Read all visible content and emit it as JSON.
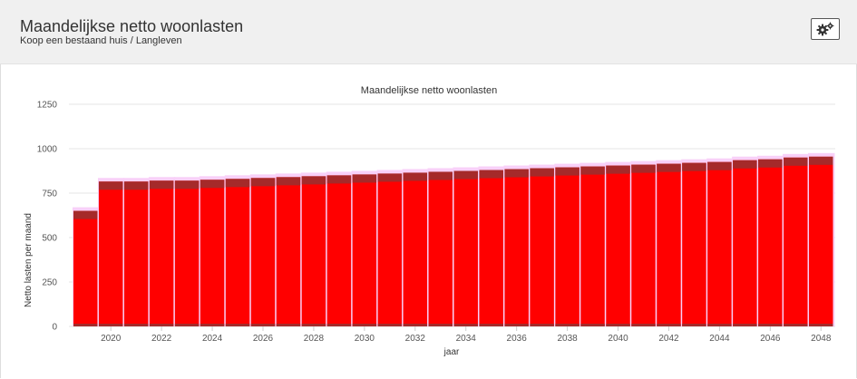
{
  "header": {
    "title": "Maandelijkse netto woonlasten",
    "subtitle": "Koop een bestaand huis / Langleven",
    "settings_icon": "gears-icon"
  },
  "colors": {
    "bar_main": "#ff0000",
    "bar_top": "#a52a2a",
    "bar_shadow": "#f8d0f8",
    "grid": "#e6e6e6",
    "header_bg": "#f0f0f0"
  },
  "chart_data": {
    "type": "bar",
    "title": "Maandelijkse netto woonlasten",
    "xlabel": "jaar",
    "ylabel": "Netto lasten per maand",
    "ylim": [
      0,
      1250
    ],
    "yticks": [
      "0",
      "250",
      "500",
      "750",
      "1000",
      "1250"
    ],
    "grid": true,
    "categories": [
      "2019",
      "2020",
      "2021",
      "2022",
      "2023",
      "2024",
      "2025",
      "2026",
      "2027",
      "2028",
      "2029",
      "2030",
      "2031",
      "2032",
      "2033",
      "2034",
      "2035",
      "2036",
      "2037",
      "2038",
      "2039",
      "2040",
      "2041",
      "2042",
      "2043",
      "2044",
      "2045",
      "2046",
      "2047",
      "2048"
    ],
    "xticks": [
      "2020",
      "2022",
      "2024",
      "2026",
      "2028",
      "2030",
      "2032",
      "2034",
      "2036",
      "2038",
      "2040",
      "2042",
      "2044",
      "2046",
      "2048"
    ],
    "values": [
      650,
      815,
      815,
      820,
      820,
      825,
      830,
      835,
      840,
      845,
      850,
      855,
      860,
      865,
      870,
      875,
      880,
      885,
      890,
      895,
      900,
      905,
      910,
      915,
      920,
      925,
      935,
      940,
      950,
      955
    ]
  }
}
